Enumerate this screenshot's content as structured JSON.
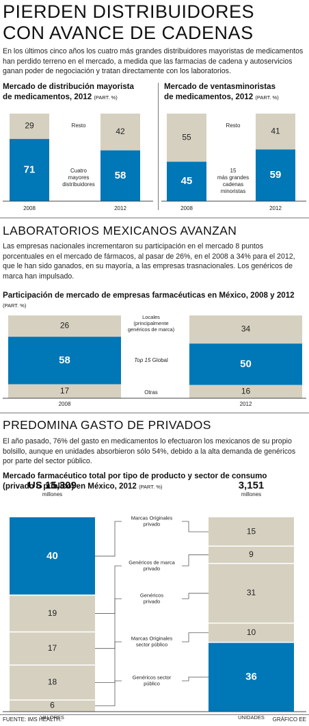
{
  "title_line1": "PIERDEN DISTRIBUIDORES",
  "title_line2": "CON AVANCE DE CADENAS",
  "intro": "En los últimos cinco años los cuatro más grandes distribuidores mayoristas de medicamentos han perdido terreno en el mercado, a medida que las farmacias de cadena y autoservicios ganan poder de negociación y tratan directamente con los laboratorios.",
  "section2_title": "LABORATORIOS MEXICANOS AVANZAN",
  "section2_text": "Las empresas nacionales incrementaron su participación en el mercado 8 puntos porcentuales en el mercado de fármacos, al pasar de 26%, en el 2008 a 34% para el 2012, que le han sido ganados, en su mayoría, a las empresas trasnacionales. Los genéricos de marca han impulsado.",
  "section3_title": "PREDOMINA GASTO DE PRIVADOS",
  "section3_text": "El año pasado, 76% del gasto en medicamentos lo efectuaron los mexicanos de su propio bolsillo, aunque en unidades absorbieron sólo 54%, debido a la alta demanda de genéricos por parte del sector público.",
  "source": "FUENTE: IMS HEALTH.",
  "credit": "GRÁFICO EE",
  "colors": {
    "blue": "#0077b6",
    "beige": "#d6d0c0",
    "rule": "#777777"
  },
  "chart_data": [
    {
      "type": "bar",
      "title_line1": "Mercado de distribución mayorista",
      "title_line2": "de medicamentos, 2012",
      "unit": "(PART. %)",
      "categories": [
        "2008",
        "2012"
      ],
      "series": [
        {
          "name": "Cuatro mayores distribuidores",
          "values": [
            71,
            58
          ]
        },
        {
          "name": "Resto",
          "values": [
            29,
            42
          ]
        }
      ],
      "labels": {
        "resto": "Resto",
        "main": [
          "Cuatro",
          "mayores",
          "distribuidores"
        ]
      }
    },
    {
      "type": "bar",
      "title_line1": "Mercado de ventasminoristas",
      "title_line2": "de medicamentos, 2012",
      "unit": "(PART. %)",
      "categories": [
        "2008",
        "2012"
      ],
      "series": [
        {
          "name": "15 más grandes cadenas minoristas",
          "values": [
            45,
            59
          ]
        },
        {
          "name": "Resto",
          "values": [
            55,
            41
          ]
        }
      ],
      "labels": {
        "resto": "Resto",
        "main": [
          "15",
          "más grandes",
          "cadenas",
          "minoristas"
        ]
      }
    },
    {
      "type": "bar",
      "title": "Participación de mercado de empresas farmacéuticas en México, 2008 y 2012",
      "unit": "(PART. %)",
      "categories": [
        "2008",
        "2012"
      ],
      "series": [
        {
          "name": "Otras",
          "values": [
            17,
            16
          ]
        },
        {
          "name": "Top 15 Global",
          "values": [
            58,
            50
          ]
        },
        {
          "name": "Locales (principalmente genéricos de marca)",
          "values": [
            26,
            34
          ]
        }
      ],
      "labels": {
        "otras": "Otras",
        "top15_italic": "Top 15",
        "top15_rest": " Global",
        "locales": [
          "Locales",
          "(principalmente",
          "genéricos de marca)"
        ]
      }
    },
    {
      "type": "bar",
      "title_line1": "Mercado farmacéutico total por tipo de producto y sector de consumo",
      "title_line2": "(privado o público) en México, 2012",
      "unit": "(PART. %)",
      "categories": [
        "VALORES",
        "UNIDADES"
      ],
      "totals": [
        {
          "value": "US 15,309",
          "unit": "millones"
        },
        {
          "value": "3,151",
          "unit": "millones"
        }
      ],
      "series": [
        {
          "name": "Marcas Originales privado",
          "values": [
            40,
            15
          ]
        },
        {
          "name": "Genéricos de marca privado",
          "values": [
            19,
            9
          ]
        },
        {
          "name": "Genéricos privado",
          "values": [
            17,
            31
          ]
        },
        {
          "name": "Marcas Originales sector público",
          "values": [
            18,
            10
          ]
        },
        {
          "name": "Genéricos sector público",
          "values": [
            6,
            36
          ]
        }
      ],
      "labels": [
        [
          "Marcas Originales",
          "privado"
        ],
        [
          "Genéricos de marca",
          "privado"
        ],
        [
          "Genéricos",
          "privado"
        ],
        [
          "Marcas Originales",
          "sector público"
        ],
        [
          "Genéricos sector",
          "público"
        ]
      ]
    }
  ]
}
